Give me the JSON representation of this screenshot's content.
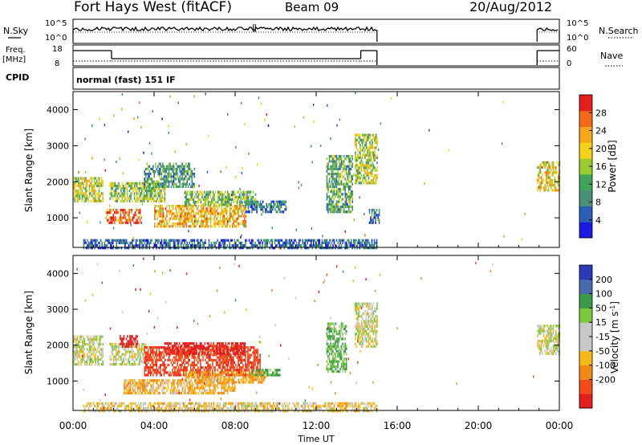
{
  "header": {
    "station": "Fort Hays West (fitACF)",
    "beam": "Beam 09",
    "date": "20/Aug/2012"
  },
  "strip_labels": {
    "nsky": "N.Sky",
    "nsky_ticks": [
      "10^5",
      "10^0"
    ],
    "nsearch": "N.Search",
    "nsearch_ticks": [
      "10^5",
      "10^0"
    ],
    "freq": "Freq.",
    "freq_unit": "[MHz]",
    "freq_ticks": [
      "18",
      "8"
    ],
    "nave": "Nave",
    "nave_ticks": [
      "60",
      "0"
    ],
    "cpid": "CPID",
    "cpid_value": "normal (fast) 151 IF"
  },
  "chart_data": [
    {
      "type": "heatmap",
      "name": "power",
      "ylabel": "Slant Range [km]",
      "yticks": [
        "4000",
        "3000",
        "2000",
        "1000"
      ],
      "ytick_values": [
        4000,
        3000,
        2000,
        1000
      ],
      "ylim": [
        180,
        4500
      ],
      "xlim_hours": [
        0,
        24
      ],
      "colorbar_label": "Power [dB]",
      "colorbar_ticks": [
        "28",
        "24",
        "20",
        "16",
        "12",
        "8",
        "4"
      ],
      "colorbar_tick_values": [
        28,
        24,
        20,
        16,
        12,
        8,
        4
      ],
      "colorbar_range": [
        0,
        32
      ],
      "colors": [
        "#1a1ae0",
        "#2a5fb8",
        "#4a8e7a",
        "#3fa35a",
        "#9acb30",
        "#f2d21a",
        "#f7a81a",
        "#f26a1a",
        "#e21e1e"
      ],
      "echo_regions": [
        {
          "t": [
            0.0,
            1.5
          ],
          "r": [
            1500,
            2200
          ],
          "level": 18
        },
        {
          "t": [
            1.6,
            3.4
          ],
          "r": [
            900,
            1300
          ],
          "level": 27
        },
        {
          "t": [
            1.8,
            4.5
          ],
          "r": [
            1500,
            2000
          ],
          "level": 15
        },
        {
          "t": [
            3.5,
            6.0
          ],
          "r": [
            1900,
            2600
          ],
          "level": 10
        },
        {
          "t": [
            4.0,
            8.5
          ],
          "r": [
            800,
            1400
          ],
          "level": 22
        },
        {
          "t": [
            5.5,
            9.0
          ],
          "r": [
            1400,
            1800
          ],
          "level": 14
        },
        {
          "t": [
            8.5,
            10.5
          ],
          "r": [
            1200,
            1500
          ],
          "level": 8
        },
        {
          "t": [
            12.5,
            13.8
          ],
          "r": [
            1200,
            2800
          ],
          "level": 12
        },
        {
          "t": [
            13.9,
            15.0
          ],
          "r": [
            2000,
            3400
          ],
          "level": 16
        },
        {
          "t": [
            14.6,
            15.1
          ],
          "r": [
            900,
            1300
          ],
          "level": 8
        },
        {
          "t": [
            22.9,
            24.0
          ],
          "r": [
            1800,
            2600
          ],
          "level": 20
        },
        {
          "t": [
            0.5,
            15.0
          ],
          "r": [
            200,
            450
          ],
          "level": 6
        }
      ]
    },
    {
      "type": "heatmap",
      "name": "velocity",
      "ylabel": "Slant Range [km]",
      "yticks": [
        "4000",
        "3000",
        "2000",
        "1000"
      ],
      "ytick_values": [
        4000,
        3000,
        2000,
        1000
      ],
      "ylim": [
        180,
        4500
      ],
      "xlim_hours": [
        0,
        24
      ],
      "xlabel": "Time UT",
      "xticks": [
        "00:00",
        "04:00",
        "08:00",
        "12:00",
        "16:00",
        "20:00",
        "00:00"
      ],
      "xtick_values": [
        0,
        4,
        8,
        12,
        16,
        20,
        24
      ],
      "colorbar_label": "Velocity [m s^-1]",
      "colorbar_ticks": [
        "200",
        "100",
        "50",
        "15",
        "-15",
        "-50",
        "-100",
        "-200"
      ],
      "colorbar_tick_values": [
        200,
        100,
        50,
        15,
        -15,
        -50,
        -100,
        -200
      ],
      "colors": [
        "#e21e1e",
        "#f24a1a",
        "#f28a1a",
        "#f7b81a",
        "#c8c8c8",
        "#c8c8c8",
        "#7ac840",
        "#3a9a4a",
        "#4a6ab0",
        "#2a3ab8"
      ],
      "echo_regions": [
        {
          "t": [
            0.0,
            1.5
          ],
          "r": [
            1500,
            2300
          ],
          "v": 0
        },
        {
          "t": [
            1.8,
            3.5
          ],
          "r": [
            1500,
            2100
          ],
          "v": 0
        },
        {
          "t": [
            2.3,
            3.2
          ],
          "r": [
            2000,
            2300
          ],
          "v": -250
        },
        {
          "t": [
            3.5,
            9.2
          ],
          "r": [
            1200,
            2000
          ],
          "v": -180
        },
        {
          "t": [
            4.5,
            8.5
          ],
          "r": [
            1800,
            2100
          ],
          "v": -230
        },
        {
          "t": [
            5.5,
            9.5
          ],
          "r": [
            1000,
            1300
          ],
          "v": -60
        },
        {
          "t": [
            8.8,
            10.2
          ],
          "r": [
            1200,
            1400
          ],
          "v": 60
        },
        {
          "t": [
            2.5,
            8.0
          ],
          "r": [
            700,
            1100
          ],
          "v": -40
        },
        {
          "t": [
            12.5,
            13.5
          ],
          "r": [
            1300,
            2700
          ],
          "v": 40
        },
        {
          "t": [
            13.9,
            15.0
          ],
          "r": [
            2000,
            3200
          ],
          "v": 0
        },
        {
          "t": [
            22.9,
            24.0
          ],
          "r": [
            1800,
            2600
          ],
          "v": 0
        },
        {
          "t": [
            0.5,
            15.0
          ],
          "r": [
            200,
            450
          ],
          "v": -20
        }
      ]
    }
  ],
  "strips": {
    "nsky_active": [
      [
        0,
        15.0
      ],
      [
        22.9,
        24.0
      ]
    ],
    "freq_steps": [
      {
        "t": [
          0,
          1.9
        ],
        "level": "high"
      },
      {
        "t": [
          1.9,
          14.2
        ],
        "level": "low"
      },
      {
        "t": [
          14.2,
          15.0
        ],
        "level": "high"
      },
      {
        "t": [
          22.9,
          24.0
        ],
        "level": "high"
      }
    ]
  }
}
